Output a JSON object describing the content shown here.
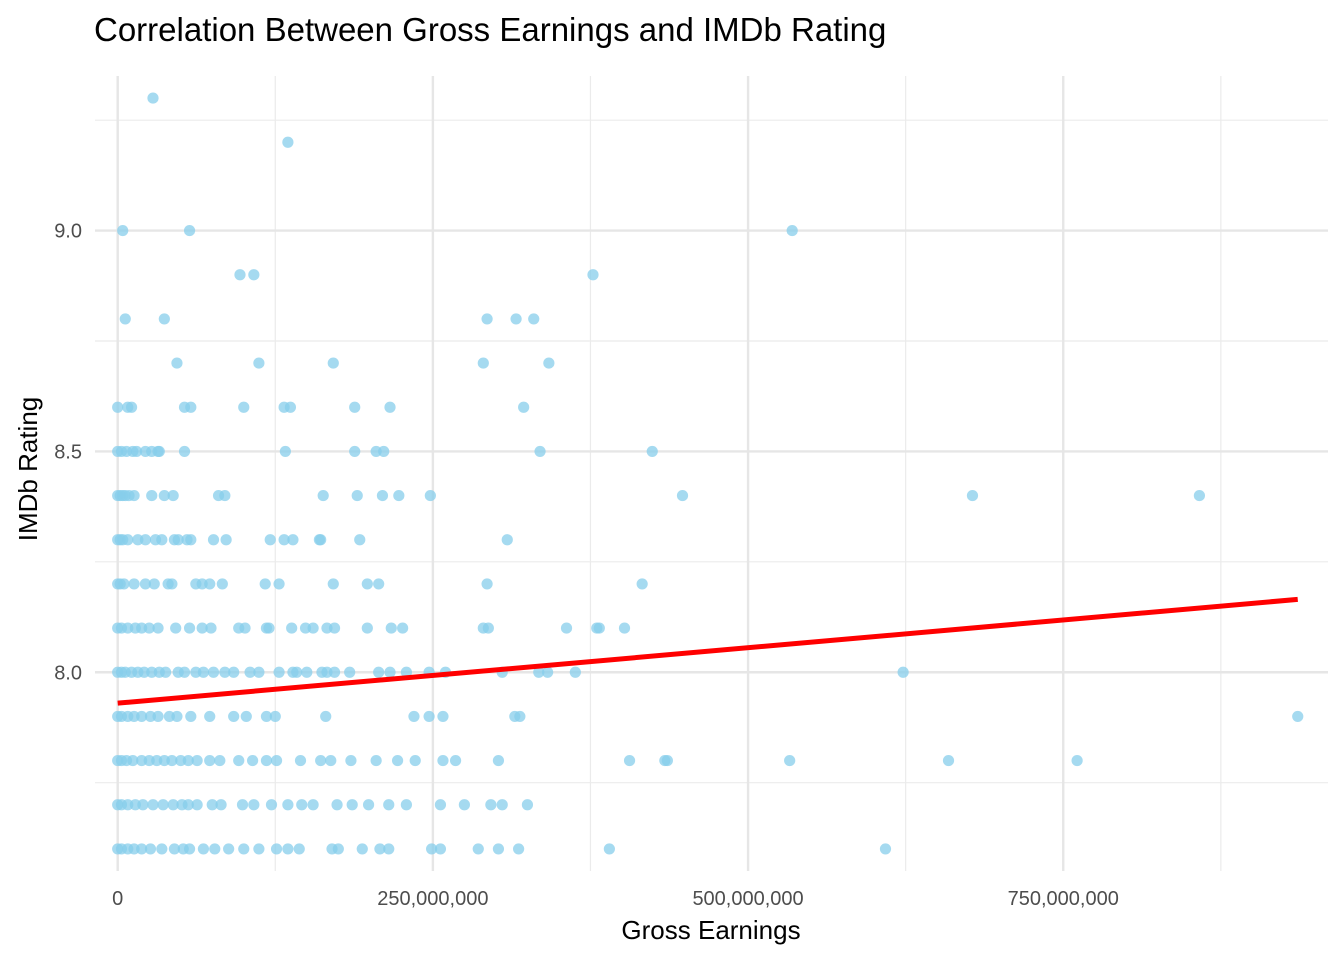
{
  "chart_data": {
    "type": "scatter",
    "title": "Correlation Between Gross Earnings and IMDb Rating",
    "xlabel": "Gross Earnings",
    "ylabel": "IMDb Rating",
    "xlim": [
      -18000000,
      960000000
    ],
    "ylim": [
      7.55,
      9.35
    ],
    "x_ticks": [
      0,
      250000000,
      500000000,
      750000000
    ],
    "x_tick_labels": [
      "0",
      "250,000,000",
      "500,000,000",
      "750,000,000"
    ],
    "x_minor_ticks": [
      125000000,
      375000000,
      625000000,
      875000000
    ],
    "y_ticks": [
      8.0,
      8.5,
      9.0
    ],
    "y_tick_labels": [
      "8.0",
      "8.5",
      "9.0"
    ],
    "y_minor_ticks": [
      7.75,
      8.25,
      8.75,
      9.25
    ],
    "grid": true,
    "point_color": "#87CEEB",
    "line_color": "#FF0000",
    "trend_line": {
      "x": [
        0,
        936000000
      ],
      "y": [
        7.93,
        8.165
      ]
    },
    "series": [
      {
        "points": [
          [
            28000000,
            9.3
          ],
          [
            135000000,
            9.2
          ],
          [
            4000000,
            9.0
          ],
          [
            57000000,
            9.0
          ],
          [
            535000000,
            9.0
          ],
          [
            97000000,
            8.9
          ],
          [
            108000000,
            8.9
          ],
          [
            377000000,
            8.9
          ],
          [
            6000000,
            8.8
          ],
          [
            37000000,
            8.8
          ],
          [
            293000000,
            8.8
          ],
          [
            316000000,
            8.8
          ],
          [
            330000000,
            8.8
          ],
          [
            47000000,
            8.7
          ],
          [
            112000000,
            8.7
          ],
          [
            171000000,
            8.7
          ],
          [
            290000000,
            8.7
          ],
          [
            342000000,
            8.7
          ],
          [
            0,
            8.6
          ],
          [
            8000000,
            8.6
          ],
          [
            11000000,
            8.6
          ],
          [
            53000000,
            8.6
          ],
          [
            58000000,
            8.6
          ],
          [
            100000000,
            8.6
          ],
          [
            132000000,
            8.6
          ],
          [
            137000000,
            8.6
          ],
          [
            188000000,
            8.6
          ],
          [
            216000000,
            8.6
          ],
          [
            322000000,
            8.6
          ],
          [
            0,
            8.5
          ],
          [
            3000000,
            8.5
          ],
          [
            7000000,
            8.5
          ],
          [
            12000000,
            8.5
          ],
          [
            15000000,
            8.5
          ],
          [
            22000000,
            8.5
          ],
          [
            27000000,
            8.5
          ],
          [
            32000000,
            8.5
          ],
          [
            33000000,
            8.5
          ],
          [
            53000000,
            8.5
          ],
          [
            133000000,
            8.5
          ],
          [
            188000000,
            8.5
          ],
          [
            205000000,
            8.5
          ],
          [
            211000000,
            8.5
          ],
          [
            335000000,
            8.5
          ],
          [
            424000000,
            8.5
          ],
          [
            0,
            8.4
          ],
          [
            2000000,
            8.4
          ],
          [
            4000000,
            8.4
          ],
          [
            6000000,
            8.4
          ],
          [
            9000000,
            8.4
          ],
          [
            13000000,
            8.4
          ],
          [
            27000000,
            8.4
          ],
          [
            37000000,
            8.4
          ],
          [
            44000000,
            8.4
          ],
          [
            80000000,
            8.4
          ],
          [
            85000000,
            8.4
          ],
          [
            163000000,
            8.4
          ],
          [
            190000000,
            8.4
          ],
          [
            210000000,
            8.4
          ],
          [
            223000000,
            8.4
          ],
          [
            248000000,
            8.4
          ],
          [
            448000000,
            8.4
          ],
          [
            678000000,
            8.4
          ],
          [
            858000000,
            8.4
          ],
          [
            0,
            8.3
          ],
          [
            2000000,
            8.3
          ],
          [
            4000000,
            8.3
          ],
          [
            8000000,
            8.3
          ],
          [
            16000000,
            8.3
          ],
          [
            22000000,
            8.3
          ],
          [
            30000000,
            8.3
          ],
          [
            35000000,
            8.3
          ],
          [
            45000000,
            8.3
          ],
          [
            48000000,
            8.3
          ],
          [
            55000000,
            8.3
          ],
          [
            58000000,
            8.3
          ],
          [
            76000000,
            8.3
          ],
          [
            86000000,
            8.3
          ],
          [
            121000000,
            8.3
          ],
          [
            132000000,
            8.3
          ],
          [
            139000000,
            8.3
          ],
          [
            160000000,
            8.3
          ],
          [
            161000000,
            8.3
          ],
          [
            192000000,
            8.3
          ],
          [
            309000000,
            8.3
          ],
          [
            0,
            8.2
          ],
          [
            2000000,
            8.2
          ],
          [
            5000000,
            8.2
          ],
          [
            13000000,
            8.2
          ],
          [
            22000000,
            8.2
          ],
          [
            29000000,
            8.2
          ],
          [
            40000000,
            8.2
          ],
          [
            43000000,
            8.2
          ],
          [
            62000000,
            8.2
          ],
          [
            67000000,
            8.2
          ],
          [
            73000000,
            8.2
          ],
          [
            83000000,
            8.2
          ],
          [
            117000000,
            8.2
          ],
          [
            128000000,
            8.2
          ],
          [
            171000000,
            8.2
          ],
          [
            198000000,
            8.2
          ],
          [
            207000000,
            8.2
          ],
          [
            293000000,
            8.2
          ],
          [
            416000000,
            8.2
          ],
          [
            0,
            8.1
          ],
          [
            3000000,
            8.1
          ],
          [
            8000000,
            8.1
          ],
          [
            14000000,
            8.1
          ],
          [
            19000000,
            8.1
          ],
          [
            25000000,
            8.1
          ],
          [
            32000000,
            8.1
          ],
          [
            46000000,
            8.1
          ],
          [
            57000000,
            8.1
          ],
          [
            67000000,
            8.1
          ],
          [
            74000000,
            8.1
          ],
          [
            96000000,
            8.1
          ],
          [
            101000000,
            8.1
          ],
          [
            118000000,
            8.1
          ],
          [
            120000000,
            8.1
          ],
          [
            138000000,
            8.1
          ],
          [
            149000000,
            8.1
          ],
          [
            155000000,
            8.1
          ],
          [
            166000000,
            8.1
          ],
          [
            172000000,
            8.1
          ],
          [
            198000000,
            8.1
          ],
          [
            217000000,
            8.1
          ],
          [
            226000000,
            8.1
          ],
          [
            290000000,
            8.1
          ],
          [
            294000000,
            8.1
          ],
          [
            356000000,
            8.1
          ],
          [
            380000000,
            8.1
          ],
          [
            382000000,
            8.1
          ],
          [
            402000000,
            8.1
          ],
          [
            0,
            8.0
          ],
          [
            3000000,
            8.0
          ],
          [
            6000000,
            8.0
          ],
          [
            11000000,
            8.0
          ],
          [
            16000000,
            8.0
          ],
          [
            21000000,
            8.0
          ],
          [
            27000000,
            8.0
          ],
          [
            33000000,
            8.0
          ],
          [
            38000000,
            8.0
          ],
          [
            48000000,
            8.0
          ],
          [
            53000000,
            8.0
          ],
          [
            62000000,
            8.0
          ],
          [
            68000000,
            8.0
          ],
          [
            76000000,
            8.0
          ],
          [
            85000000,
            8.0
          ],
          [
            92000000,
            8.0
          ],
          [
            105000000,
            8.0
          ],
          [
            112000000,
            8.0
          ],
          [
            128000000,
            8.0
          ],
          [
            139000000,
            8.0
          ],
          [
            142000000,
            8.0
          ],
          [
            150000000,
            8.0
          ],
          [
            162000000,
            8.0
          ],
          [
            166000000,
            8.0
          ],
          [
            172000000,
            8.0
          ],
          [
            184000000,
            8.0
          ],
          [
            207000000,
            8.0
          ],
          [
            216000000,
            8.0
          ],
          [
            229000000,
            8.0
          ],
          [
            247000000,
            8.0
          ],
          [
            260000000,
            8.0
          ],
          [
            305000000,
            8.0
          ],
          [
            334000000,
            8.0
          ],
          [
            341000000,
            8.0
          ],
          [
            363000000,
            8.0
          ],
          [
            623000000,
            8.0
          ],
          [
            0,
            7.9
          ],
          [
            3000000,
            7.9
          ],
          [
            8000000,
            7.9
          ],
          [
            13000000,
            7.9
          ],
          [
            19000000,
            7.9
          ],
          [
            26000000,
            7.9
          ],
          [
            32000000,
            7.9
          ],
          [
            41000000,
            7.9
          ],
          [
            47000000,
            7.9
          ],
          [
            58000000,
            7.9
          ],
          [
            73000000,
            7.9
          ],
          [
            92000000,
            7.9
          ],
          [
            102000000,
            7.9
          ],
          [
            118000000,
            7.9
          ],
          [
            125000000,
            7.9
          ],
          [
            165000000,
            7.9
          ],
          [
            235000000,
            7.9
          ],
          [
            247000000,
            7.9
          ],
          [
            258000000,
            7.9
          ],
          [
            315000000,
            7.9
          ],
          [
            319000000,
            7.9
          ],
          [
            936000000,
            7.9
          ],
          [
            0,
            7.8
          ],
          [
            3000000,
            7.8
          ],
          [
            7000000,
            7.8
          ],
          [
            12000000,
            7.8
          ],
          [
            19000000,
            7.8
          ],
          [
            25000000,
            7.8
          ],
          [
            31000000,
            7.8
          ],
          [
            37000000,
            7.8
          ],
          [
            43000000,
            7.8
          ],
          [
            50000000,
            7.8
          ],
          [
            56000000,
            7.8
          ],
          [
            63000000,
            7.8
          ],
          [
            73000000,
            7.8
          ],
          [
            81000000,
            7.8
          ],
          [
            96000000,
            7.8
          ],
          [
            107000000,
            7.8
          ],
          [
            118000000,
            7.8
          ],
          [
            126000000,
            7.8
          ],
          [
            145000000,
            7.8
          ],
          [
            161000000,
            7.8
          ],
          [
            169000000,
            7.8
          ],
          [
            185000000,
            7.8
          ],
          [
            205000000,
            7.8
          ],
          [
            222000000,
            7.8
          ],
          [
            236000000,
            7.8
          ],
          [
            258000000,
            7.8
          ],
          [
            268000000,
            7.8
          ],
          [
            302000000,
            7.8
          ],
          [
            406000000,
            7.8
          ],
          [
            434000000,
            7.8
          ],
          [
            436000000,
            7.8
          ],
          [
            533000000,
            7.8
          ],
          [
            659000000,
            7.8
          ],
          [
            761000000,
            7.8
          ],
          [
            0,
            7.7
          ],
          [
            3000000,
            7.7
          ],
          [
            8000000,
            7.7
          ],
          [
            14000000,
            7.7
          ],
          [
            20000000,
            7.7
          ],
          [
            28000000,
            7.7
          ],
          [
            36000000,
            7.7
          ],
          [
            44000000,
            7.7
          ],
          [
            51000000,
            7.7
          ],
          [
            56000000,
            7.7
          ],
          [
            63000000,
            7.7
          ],
          [
            75000000,
            7.7
          ],
          [
            82000000,
            7.7
          ],
          [
            99000000,
            7.7
          ],
          [
            108000000,
            7.7
          ],
          [
            122000000,
            7.7
          ],
          [
            135000000,
            7.7
          ],
          [
            146000000,
            7.7
          ],
          [
            155000000,
            7.7
          ],
          [
            174000000,
            7.7
          ],
          [
            186000000,
            7.7
          ],
          [
            199000000,
            7.7
          ],
          [
            215000000,
            7.7
          ],
          [
            229000000,
            7.7
          ],
          [
            256000000,
            7.7
          ],
          [
            275000000,
            7.7
          ],
          [
            296000000,
            7.7
          ],
          [
            305000000,
            7.7
          ],
          [
            325000000,
            7.7
          ],
          [
            0,
            7.6
          ],
          [
            3000000,
            7.6
          ],
          [
            8000000,
            7.6
          ],
          [
            13000000,
            7.6
          ],
          [
            19000000,
            7.6
          ],
          [
            26000000,
            7.6
          ],
          [
            35000000,
            7.6
          ],
          [
            45000000,
            7.6
          ],
          [
            52000000,
            7.6
          ],
          [
            57000000,
            7.6
          ],
          [
            68000000,
            7.6
          ],
          [
            77000000,
            7.6
          ],
          [
            88000000,
            7.6
          ],
          [
            100000000,
            7.6
          ],
          [
            112000000,
            7.6
          ],
          [
            126000000,
            7.6
          ],
          [
            135000000,
            7.6
          ],
          [
            144000000,
            7.6
          ],
          [
            170000000,
            7.6
          ],
          [
            175000000,
            7.6
          ],
          [
            194000000,
            7.6
          ],
          [
            208000000,
            7.6
          ],
          [
            215000000,
            7.6
          ],
          [
            249000000,
            7.6
          ],
          [
            256000000,
            7.6
          ],
          [
            286000000,
            7.6
          ],
          [
            302000000,
            7.6
          ],
          [
            318000000,
            7.6
          ],
          [
            390000000,
            7.6
          ],
          [
            609000000,
            7.6
          ]
        ]
      }
    ]
  }
}
